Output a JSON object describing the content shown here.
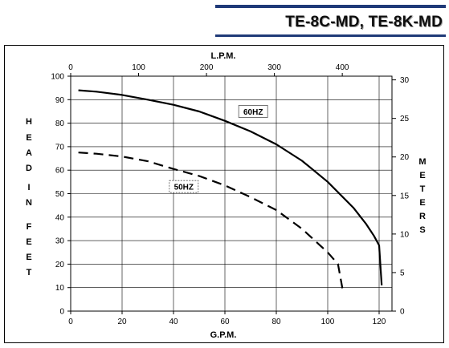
{
  "header": {
    "title": "TE-8C-MD, TE-8K-MD"
  },
  "chart_data": {
    "type": "line",
    "x_axis": {
      "label": "G.P.M.",
      "range": [
        0,
        125
      ],
      "ticks": [
        0,
        20,
        40,
        60,
        80,
        100,
        120
      ]
    },
    "x2_axis": {
      "label": "L.P.M.",
      "ticks": [
        0,
        100,
        200,
        300,
        400
      ]
    },
    "y_axis": {
      "label": "HEAD IN FEET",
      "label_letters": [
        "H",
        "E",
        "A",
        "D",
        "I",
        "N",
        "F",
        "E",
        "E",
        "T"
      ],
      "range": [
        0,
        100
      ],
      "ticks": [
        0,
        10,
        20,
        30,
        40,
        50,
        60,
        70,
        80,
        90,
        100
      ]
    },
    "y2_axis": {
      "label": "METERS",
      "label_letters": [
        "M",
        "E",
        "T",
        "E",
        "R",
        "S"
      ],
      "ticks": [
        0,
        5,
        10,
        15,
        20,
        25,
        30
      ]
    },
    "grid": true,
    "series": [
      {
        "name": "60HZ",
        "style": "solid",
        "x": [
          3,
          10,
          20,
          30,
          40,
          50,
          60,
          70,
          80,
          90,
          100,
          110,
          115,
          118,
          120,
          121
        ],
        "y": [
          94,
          93.4,
          92,
          90,
          87.8,
          85,
          81,
          76.5,
          71,
          64,
          55,
          44,
          37,
          32,
          28,
          11
        ]
      },
      {
        "name": "50HZ",
        "style": "dashed",
        "x": [
          3,
          10,
          20,
          30,
          40,
          50,
          60,
          70,
          80,
          90,
          100,
          104,
          106
        ],
        "y": [
          67.5,
          67,
          65.8,
          63.8,
          60.5,
          57.5,
          53.5,
          48.5,
          43,
          35,
          25,
          20,
          8
        ]
      }
    ],
    "annotations": [
      {
        "text": "60HZ",
        "x": 71,
        "y": 85
      },
      {
        "text": "50HZ",
        "x": 44,
        "y": 53
      }
    ]
  }
}
